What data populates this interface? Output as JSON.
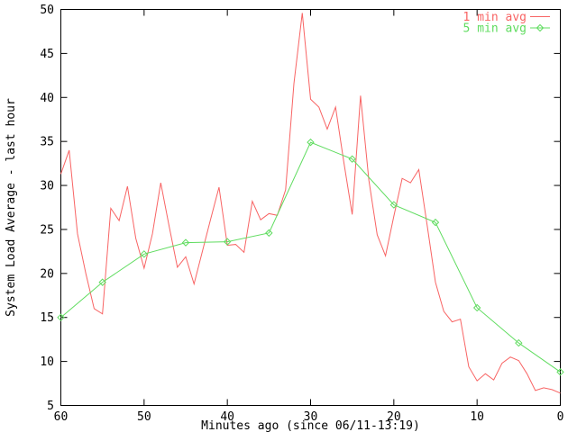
{
  "chart_data": {
    "type": "line",
    "title": "",
    "xlabel": "Minutes ago (since 06/11-13:19)",
    "ylabel": "System Load Average - last hour",
    "xlim": [
      60,
      0
    ],
    "ylim": [
      5,
      50
    ],
    "x_ticks": [
      60,
      50,
      40,
      30,
      20,
      10,
      0
    ],
    "y_ticks": [
      5,
      10,
      15,
      20,
      25,
      30,
      35,
      40,
      45,
      50
    ],
    "grid": false,
    "legend_position": "top-right-inside",
    "series": [
      {
        "name": "1 min avg",
        "color": "#f86464",
        "marker": "none",
        "x": [
          60,
          59,
          58,
          57,
          56,
          55,
          54,
          53,
          52,
          51,
          50,
          49,
          48,
          47,
          46,
          45,
          44,
          43,
          42,
          41,
          40,
          39,
          38,
          37,
          36,
          35,
          34,
          33,
          32,
          31,
          30,
          29,
          28,
          27,
          26,
          25,
          24,
          23,
          22,
          21,
          20,
          19,
          18,
          17,
          16,
          15,
          14,
          13,
          12,
          11,
          10,
          9,
          8,
          7,
          6,
          5,
          4,
          3,
          2,
          1,
          0
        ],
        "values": [
          31.3,
          34.0,
          24.5,
          20.0,
          16.0,
          15.4,
          27.4,
          26.0,
          29.9,
          24.0,
          20.6,
          24.5,
          30.3,
          25.4,
          20.7,
          21.9,
          18.8,
          22.5,
          26.2,
          29.8,
          23.2,
          23.3,
          22.4,
          28.2,
          26.1,
          26.8,
          26.6,
          29.5,
          41.6,
          49.6,
          39.8,
          38.9,
          36.4,
          38.9,
          32.6,
          26.7,
          40.2,
          30.6,
          24.4,
          22.0,
          26.5,
          30.8,
          30.3,
          31.8,
          25.5,
          19.0,
          15.7,
          14.5,
          14.8,
          9.4,
          7.8,
          8.6,
          7.9,
          9.8,
          10.5,
          10.1,
          8.6,
          6.7,
          7.0,
          6.8,
          6.4
        ]
      },
      {
        "name": "5 min avg",
        "color": "#5fdc5f",
        "marker": "diamond",
        "x": [
          60,
          55,
          50,
          45,
          40,
          35,
          30,
          25,
          20,
          15,
          10,
          5,
          0
        ],
        "values": [
          15.0,
          19.0,
          22.2,
          23.5,
          23.6,
          24.6,
          34.9,
          33.0,
          27.8,
          25.8,
          16.1,
          12.1,
          8.8
        ]
      }
    ]
  },
  "style": {
    "background": "#ffffff",
    "axis_color": "#000000",
    "text_color": "#000000"
  }
}
